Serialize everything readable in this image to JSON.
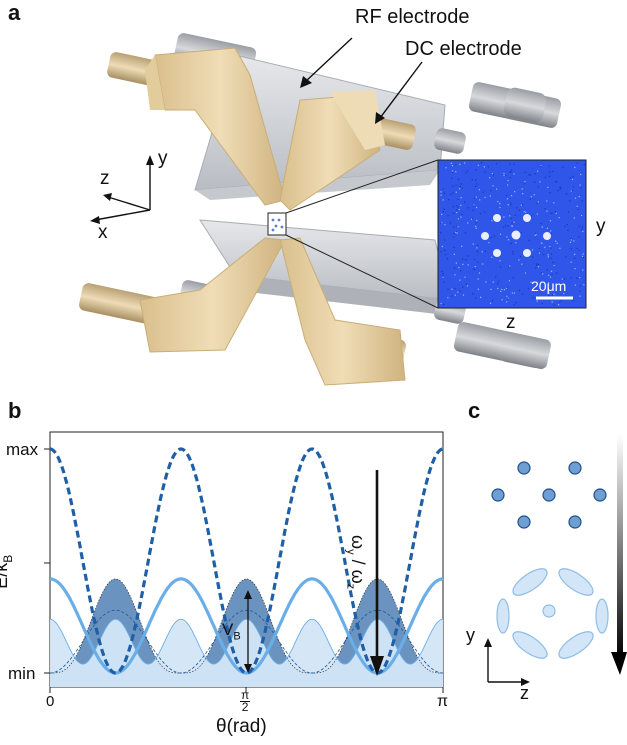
{
  "panel_a": {
    "letter": "a",
    "rf_label": "RF electrode",
    "dc_label": "DC electrode",
    "axis_z": "z",
    "axis_y": "y",
    "axis_x": "x",
    "inset_axis_y": "y",
    "inset_axis_z": "z",
    "scale_bar": "20μm"
  },
  "panel_b": {
    "letter": "b",
    "y_axis_label": "E/k",
    "y_axis_sub": "B",
    "y_max": "max",
    "y_min": "min",
    "x_axis_label": "θ(rad)",
    "x_tick_0": "0",
    "x_tick_half_num": "π",
    "x_tick_half_den": "2",
    "x_tick_pi": "π",
    "barrier_label": "V",
    "barrier_sub": "B",
    "ratio_label": "ω",
    "ratio_sub_y": "y",
    "ratio_slash": "/",
    "ratio_label2": "ω",
    "ratio_sub_z": "z"
  },
  "panel_c": {
    "letter": "c",
    "axis_y": "y",
    "axis_z": "z"
  },
  "colors": {
    "dark_blue": "#1f5fa8",
    "light_blue": "#6aaee8",
    "fill_light": "#d3e6f7",
    "fill_dark": "#5b87b8",
    "electrode_gold": "#e8d3a8",
    "electrode_gray": "#cfd2d6",
    "inset_bg": "#2f56e8"
  },
  "chart_data": {
    "type": "line",
    "x_range": [
      0,
      3.14159
    ],
    "y_range": [
      "min",
      "max"
    ],
    "series": [
      {
        "style": "dashed",
        "color": "#1f5fa8",
        "period": "π/3",
        "amplitude": "max"
      },
      {
        "style": "solid",
        "color": "#6aaee8",
        "period": "π/3",
        "amplitude": 0.42
      },
      {
        "style": "thin-dashed",
        "color": "#1f5fa8",
        "period": "π/3",
        "amplitude": 0.28
      }
    ]
  }
}
